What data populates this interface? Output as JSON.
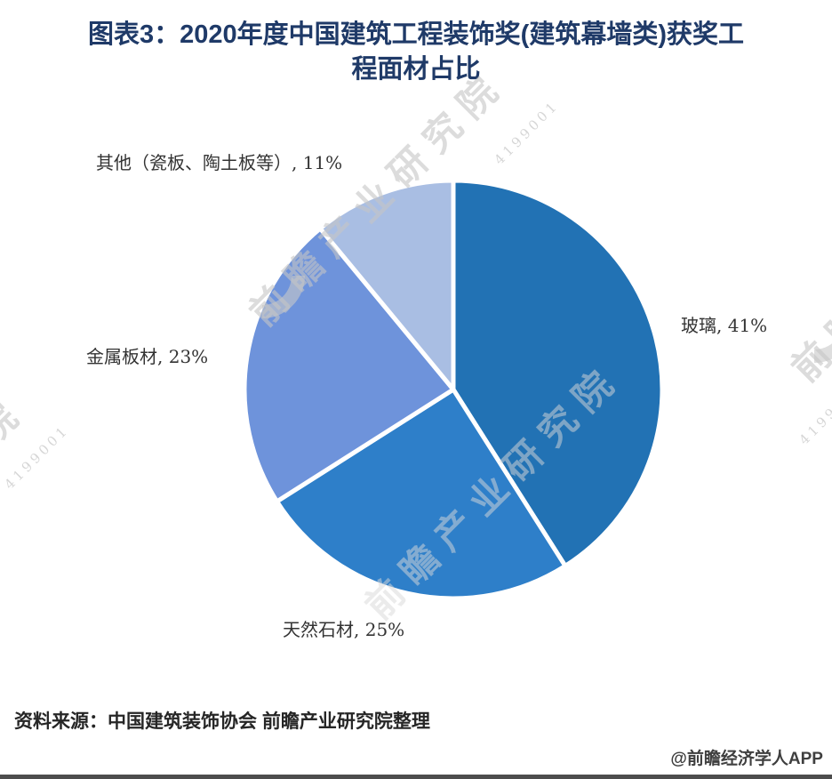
{
  "header": {
    "title_line1": "图表3：2020年度中国建筑工程装饰奖(建筑幕墙类)获奖工",
    "title_line2": "程面材占比"
  },
  "chart_data": {
    "type": "pie",
    "title": "2020年度中国建筑工程装饰奖(建筑幕墙类)获奖工程面材占比",
    "unit": "%",
    "start_angle_deg": -90,
    "direction": "clockwise",
    "legend_position": "none",
    "slices": [
      {
        "name": "玻璃",
        "value": 41,
        "label": "玻璃, 41%",
        "color": "#2272B4"
      },
      {
        "name": "天然石材",
        "value": 25,
        "label": "天然石材, 25%",
        "color": "#2E7FC9"
      },
      {
        "name": "金属板材",
        "value": 23,
        "label": "金属板材, 23%",
        "color": "#6E93DB"
      },
      {
        "name": "其他（瓷板、陶土板等）",
        "value": 11,
        "label": "其他（瓷板、陶土板等）, 11%",
        "color": "#A9BEE3"
      }
    ]
  },
  "footer": {
    "source": "资料来源：中国建筑装饰协会 前瞻产业研究院整理",
    "credit": "@前瞻经济学人APP"
  },
  "watermark": {
    "brand": "前瞻产业研究院",
    "brand_partial": "前瞻",
    "brand_partial_left": "院",
    "digits": "4199001"
  },
  "colors": {
    "title": "#1f3a68",
    "label_text": "#333333",
    "slice_divider": "#ffffff",
    "bottom_bar": "#4d4d4d"
  }
}
